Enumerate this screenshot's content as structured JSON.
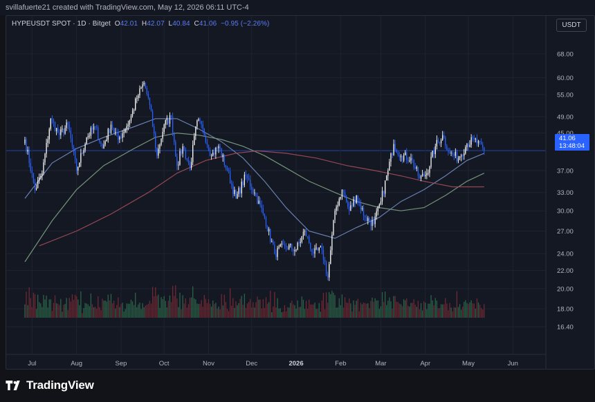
{
  "header": {
    "attribution": "svillafuerte21 created with TradingView.com, May 12, 2026 06:11 UTC-4"
  },
  "legend": {
    "symbol_label": "HYPEUSDT SPOT · 1D · Bitget",
    "open_key": "O",
    "open": "42.01",
    "high_key": "H",
    "high": "42.07",
    "low_key": "L",
    "low": "40.84",
    "close_key": "C",
    "close": "41.06",
    "change": "−0.95 (−2.26%)"
  },
  "currency_button": "USDT",
  "price_tag": {
    "price": "41.06",
    "countdown": "13:48:04"
  },
  "footer": {
    "brand": "TradingView"
  },
  "colors": {
    "up": "#ffffff",
    "down": "#2962ff",
    "ma_short": "#6f86b8",
    "ma_mid": "#7a9a7f",
    "ma_long": "#9c4a58",
    "vol_up": "#2e6b4d",
    "vol_down": "#7a2a34",
    "background": "#141823",
    "grid": "#1f2330"
  },
  "chart_data": {
    "type": "candlestick",
    "symbol": "HYPEUSDT",
    "interval": "1D",
    "y_axis": {
      "scale": "log",
      "ticks": [
        "68.00",
        "60.00",
        "55.00",
        "49.00",
        "45.00",
        "41.06",
        "37.00",
        "33.00",
        "30.00",
        "27.00",
        "24.00",
        "22.00",
        "20.00",
        "18.00",
        "16.40"
      ]
    },
    "x_axis": {
      "ticks": [
        "Jul",
        "Aug",
        "Sep",
        "Oct",
        "Nov",
        "Dec",
        "2026",
        "Feb",
        "Mar",
        "Apr",
        "May",
        "Jun"
      ],
      "bold_ticks": [
        "2026"
      ]
    },
    "price_key_points": [
      [
        "2025-06-26",
        43.5
      ],
      [
        "2025-07-03",
        33.5
      ],
      [
        "2025-07-08",
        36.5
      ],
      [
        "2025-07-14",
        48.5
      ],
      [
        "2025-07-20",
        44.5
      ],
      [
        "2025-07-26",
        47.0
      ],
      [
        "2025-08-01",
        37.0
      ],
      [
        "2025-08-08",
        44.0
      ],
      [
        "2025-08-14",
        46.5
      ],
      [
        "2025-08-19",
        41.5
      ],
      [
        "2025-08-25",
        47.0
      ],
      [
        "2025-08-30",
        43.5
      ],
      [
        "2025-09-07",
        48.0
      ],
      [
        "2025-09-12",
        54.0
      ],
      [
        "2025-09-17",
        58.5
      ],
      [
        "2025-09-21",
        52.0
      ],
      [
        "2025-09-26",
        40.0
      ],
      [
        "2025-10-01",
        47.0
      ],
      [
        "2025-10-06",
        49.0
      ],
      [
        "2025-10-10",
        38.0
      ],
      [
        "2025-10-14",
        42.0
      ],
      [
        "2025-10-19",
        37.5
      ],
      [
        "2025-10-24",
        48.0
      ],
      [
        "2025-10-28",
        46.0
      ],
      [
        "2025-11-03",
        40.0
      ],
      [
        "2025-11-08",
        42.0
      ],
      [
        "2025-11-14",
        37.0
      ],
      [
        "2025-11-20",
        32.0
      ],
      [
        "2025-11-27",
        36.0
      ],
      [
        "2025-12-03",
        33.0
      ],
      [
        "2025-12-10",
        29.0
      ],
      [
        "2025-12-17",
        24.0
      ],
      [
        "2025-12-24",
        25.0
      ],
      [
        "2026-01-01",
        24.5
      ],
      [
        "2026-01-07",
        27.0
      ],
      [
        "2026-01-13",
        24.0
      ],
      [
        "2026-01-19",
        24.5
      ],
      [
        "2026-01-23",
        21.2
      ],
      [
        "2026-01-28",
        30.0
      ],
      [
        "2026-02-02",
        33.5
      ],
      [
        "2026-02-07",
        30.0
      ],
      [
        "2026-02-12",
        32.5
      ],
      [
        "2026-02-18",
        29.0
      ],
      [
        "2026-02-24",
        28.0
      ],
      [
        "2026-03-01",
        31.5
      ],
      [
        "2026-03-06",
        37.0
      ],
      [
        "2026-03-10",
        42.5
      ],
      [
        "2026-03-15",
        40.0
      ],
      [
        "2026-03-22",
        39.5
      ],
      [
        "2026-03-28",
        35.5
      ],
      [
        "2026-04-02",
        36.5
      ],
      [
        "2026-04-08",
        42.0
      ],
      [
        "2026-04-13",
        44.5
      ],
      [
        "2026-04-18",
        40.5
      ],
      [
        "2026-04-24",
        39.5
      ],
      [
        "2026-04-30",
        42.5
      ],
      [
        "2026-05-05",
        43.5
      ],
      [
        "2026-05-12",
        41.06
      ]
    ],
    "moving_averages": [
      {
        "key": "ma_short",
        "points": [
          [
            "2025-06-26",
            32.0
          ],
          [
            "2025-07-15",
            38.5
          ],
          [
            "2025-08-01",
            41.5
          ],
          [
            "2025-08-20",
            44.0
          ],
          [
            "2025-09-10",
            46.5
          ],
          [
            "2025-09-25",
            48.5
          ],
          [
            "2025-10-10",
            48.5
          ],
          [
            "2025-10-25",
            46.0
          ],
          [
            "2025-11-10",
            43.0
          ],
          [
            "2025-11-25",
            39.5
          ],
          [
            "2025-12-10",
            35.0
          ],
          [
            "2025-12-25",
            30.5
          ],
          [
            "2026-01-10",
            27.0
          ],
          [
            "2026-01-28",
            26.0
          ],
          [
            "2026-02-12",
            27.5
          ],
          [
            "2026-02-28",
            29.0
          ],
          [
            "2026-03-15",
            31.5
          ],
          [
            "2026-03-31",
            33.5
          ],
          [
            "2026-04-15",
            36.0
          ],
          [
            "2026-04-30",
            39.0
          ],
          [
            "2026-05-12",
            40.5
          ]
        ]
      },
      {
        "key": "ma_mid",
        "points": [
          [
            "2025-06-26",
            23.0
          ],
          [
            "2025-07-15",
            28.5
          ],
          [
            "2025-08-01",
            33.5
          ],
          [
            "2025-08-20",
            38.0
          ],
          [
            "2025-09-10",
            41.5
          ],
          [
            "2025-09-25",
            44.0
          ],
          [
            "2025-10-10",
            45.0
          ],
          [
            "2025-10-25",
            44.5
          ],
          [
            "2025-11-10",
            43.5
          ],
          [
            "2025-11-25",
            42.0
          ],
          [
            "2025-12-10",
            40.0
          ],
          [
            "2025-12-25",
            37.5
          ],
          [
            "2026-01-10",
            35.0
          ],
          [
            "2026-01-28",
            33.0
          ],
          [
            "2026-02-12",
            31.5
          ],
          [
            "2026-02-28",
            30.5
          ],
          [
            "2026-03-15",
            30.0
          ],
          [
            "2026-03-31",
            30.5
          ],
          [
            "2026-04-15",
            32.5
          ],
          [
            "2026-04-30",
            35.0
          ],
          [
            "2026-05-12",
            36.5
          ]
        ]
      },
      {
        "key": "ma_long",
        "points": [
          [
            "2025-07-06",
            25.0
          ],
          [
            "2025-08-01",
            27.0
          ],
          [
            "2025-08-25",
            29.5
          ],
          [
            "2025-09-20",
            33.0
          ],
          [
            "2025-10-10",
            36.5
          ],
          [
            "2025-10-30",
            39.0
          ],
          [
            "2025-11-20",
            40.5
          ],
          [
            "2025-12-05",
            41.0
          ],
          [
            "2025-12-25",
            40.5
          ],
          [
            "2026-01-15",
            39.5
          ],
          [
            "2026-02-05",
            38.0
          ],
          [
            "2026-02-25",
            37.0
          ],
          [
            "2026-03-15",
            36.0
          ],
          [
            "2026-03-31",
            35.0
          ],
          [
            "2026-04-20",
            34.0
          ],
          [
            "2026-05-12",
            34.0
          ]
        ]
      }
    ]
  }
}
